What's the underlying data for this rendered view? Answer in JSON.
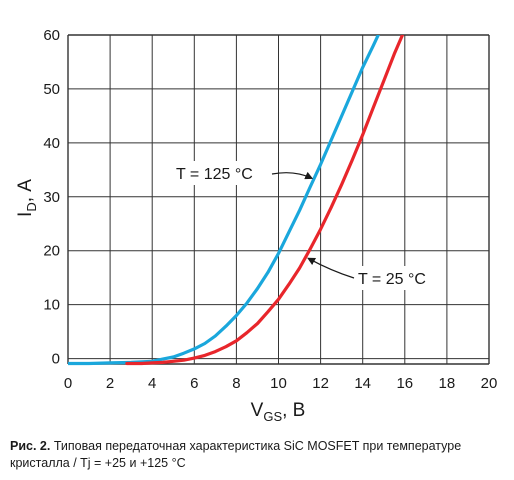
{
  "chart_data": {
    "type": "line",
    "xlabel_main": "V",
    "xlabel_sub": "GS",
    "xlabel_unit": ", В",
    "ylabel_main": "I",
    "ylabel_sub": "D",
    "ylabel_unit": ", А",
    "xlim": [
      0,
      20
    ],
    "ylim": [
      -1,
      60
    ],
    "xticks": [
      0,
      2,
      4,
      6,
      8,
      10,
      12,
      14,
      16,
      18,
      20
    ],
    "yticks": [
      0,
      10,
      20,
      30,
      40,
      50,
      60
    ],
    "grid": true,
    "series": [
      {
        "name": "T = 125 °C",
        "color": "#1aa7dc",
        "x": [
          0,
          1,
          2,
          3,
          4,
          4.5,
          5,
          5.5,
          6,
          6.5,
          7,
          7.5,
          8,
          8.5,
          9,
          9.5,
          10,
          10.5,
          11,
          11.5,
          12,
          12.5,
          13,
          13.5,
          14,
          14.5,
          14.8
        ],
        "y": [
          -0.9,
          -0.9,
          -0.8,
          -0.7,
          -0.5,
          -0.1,
          0.3,
          1.0,
          1.8,
          2.8,
          4.2,
          6.0,
          8.0,
          10.3,
          13.0,
          16.0,
          19.5,
          23.5,
          27.5,
          31.8,
          36.0,
          40.5,
          45.0,
          49.5,
          54.0,
          58.0,
          60.5
        ]
      },
      {
        "name": "T = 25 °C",
        "color": "#e8262b",
        "x": [
          2.8,
          3.5,
          4,
          4.5,
          5,
          5.5,
          6,
          6.5,
          7,
          7.5,
          8,
          8.5,
          9,
          9.5,
          10,
          10.5,
          11,
          11.5,
          12,
          12.5,
          13,
          13.5,
          14,
          14.5,
          15,
          15.5,
          16
        ],
        "y": [
          -0.9,
          -0.9,
          -0.8,
          -0.7,
          -0.5,
          -0.3,
          0.1,
          0.6,
          1.3,
          2.2,
          3.3,
          4.8,
          6.5,
          8.7,
          11.0,
          13.8,
          16.8,
          20.3,
          24.0,
          28.0,
          32.3,
          36.8,
          41.5,
          46.5,
          51.5,
          56.5,
          61.0
        ]
      }
    ],
    "annotations": [
      {
        "text": "T = 125 °C",
        "series": 0,
        "arrow_to_x": 11.7
      },
      {
        "text": "T = 25 °C",
        "series": 1,
        "arrow_to_x": 11.3
      }
    ]
  },
  "caption": {
    "prefix": "Рис. 2.",
    "text": " Типовая передаточная характеристика SiC MOSFET при температуре кристалла / Tj = +25 и +125 °C"
  }
}
